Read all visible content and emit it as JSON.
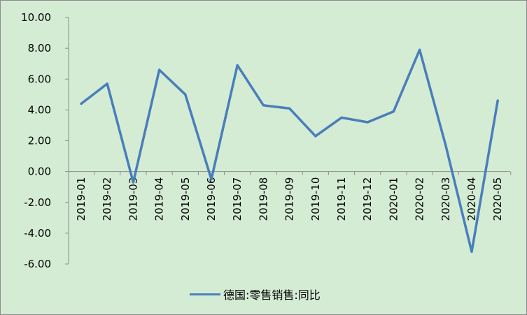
{
  "chart_data": {
    "type": "line",
    "title": "",
    "xlabel": "",
    "ylabel": "",
    "categories": [
      "2019-01",
      "2019-02",
      "2019-03",
      "2019-04",
      "2019-05",
      "2019-06",
      "2019-07",
      "2019-08",
      "2019-09",
      "2019-10",
      "2019-11",
      "2019-12",
      "2020-01",
      "2020-02",
      "2020-03",
      "2020-04",
      "2020-05"
    ],
    "series": [
      {
        "name": "德国:零售销售:同比",
        "color": "#4a7ebb",
        "values": [
          4.4,
          5.7,
          -0.7,
          6.6,
          5.0,
          -0.5,
          6.9,
          4.3,
          4.1,
          2.3,
          3.5,
          3.2,
          3.9,
          7.9,
          1.7,
          -5.2,
          4.6
        ]
      }
    ],
    "ylim": [
      -6,
      10
    ],
    "y_ticks": [
      "10.00",
      "8.00",
      "6.00",
      "4.00",
      "2.00",
      "0.00",
      "-2.00",
      "-4.00",
      "-6.00"
    ],
    "y_tick_values": [
      10,
      8,
      6,
      4,
      2,
      0,
      -2,
      -4,
      -6
    ],
    "grid": false,
    "legend_position": "bottom"
  },
  "colors": {
    "plot_background": "#d4ecd4",
    "axis": "#8c8c8c"
  }
}
